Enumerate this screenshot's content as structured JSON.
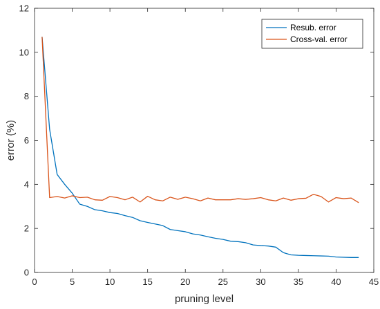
{
  "chart_data": {
    "type": "line",
    "title": "",
    "xlabel": "pruning level",
    "ylabel": "error (%)",
    "xlim": [
      0,
      45
    ],
    "ylim": [
      0,
      12
    ],
    "xticks": [
      0,
      5,
      10,
      15,
      20,
      25,
      30,
      35,
      40,
      45
    ],
    "yticks": [
      0,
      2,
      4,
      6,
      8,
      10,
      12
    ],
    "grid": false,
    "legend_position": "top-right",
    "series": [
      {
        "name": "Resub. error",
        "color": "#0072BD",
        "x": [
          1,
          2,
          3,
          4,
          5,
          6,
          7,
          8,
          9,
          10,
          11,
          12,
          13,
          14,
          15,
          16,
          17,
          18,
          19,
          20,
          21,
          22,
          23,
          24,
          25,
          26,
          27,
          28,
          29,
          30,
          31,
          32,
          33,
          34,
          35,
          36,
          37,
          38,
          39,
          40,
          41,
          42,
          43
        ],
        "y": [
          10.7,
          6.5,
          4.45,
          4.0,
          3.6,
          3.1,
          3.0,
          2.85,
          2.8,
          2.72,
          2.68,
          2.58,
          2.5,
          2.35,
          2.27,
          2.2,
          2.13,
          1.95,
          1.9,
          1.85,
          1.75,
          1.7,
          1.62,
          1.55,
          1.5,
          1.42,
          1.4,
          1.35,
          1.25,
          1.22,
          1.2,
          1.15,
          0.9,
          0.8,
          0.78,
          0.77,
          0.76,
          0.75,
          0.74,
          0.7,
          0.69,
          0.68,
          0.68
        ]
      },
      {
        "name": "Cross-val. error",
        "color": "#D95319",
        "x": [
          1,
          2,
          3,
          4,
          5,
          6,
          7,
          8,
          9,
          10,
          11,
          12,
          13,
          14,
          15,
          16,
          17,
          18,
          19,
          20,
          21,
          22,
          23,
          24,
          25,
          26,
          27,
          28,
          29,
          30,
          31,
          32,
          33,
          34,
          35,
          36,
          37,
          38,
          39,
          40,
          41,
          42,
          43
        ],
        "y": [
          10.7,
          3.4,
          3.45,
          3.38,
          3.48,
          3.4,
          3.42,
          3.3,
          3.28,
          3.45,
          3.4,
          3.3,
          3.42,
          3.2,
          3.46,
          3.3,
          3.25,
          3.42,
          3.32,
          3.42,
          3.35,
          3.25,
          3.38,
          3.3,
          3.3,
          3.3,
          3.35,
          3.32,
          3.35,
          3.4,
          3.3,
          3.25,
          3.38,
          3.28,
          3.35,
          3.37,
          3.55,
          3.45,
          3.2,
          3.4,
          3.35,
          3.38,
          3.17
        ]
      }
    ]
  }
}
